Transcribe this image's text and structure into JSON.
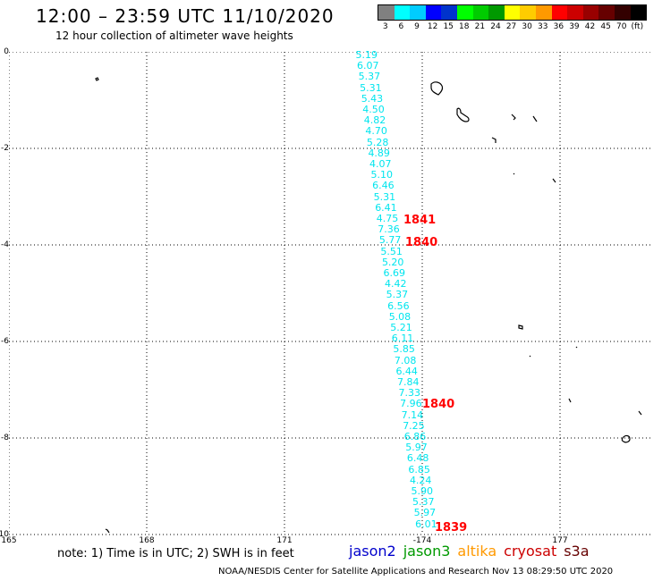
{
  "header": {
    "title": "12:00 – 23:59 UTC 11/10/2020",
    "subtitle": "12 hour collection of altimeter wave heights"
  },
  "scale": {
    "colors": [
      "#808080",
      "#00ffff",
      "#00ccff",
      "#0000ff",
      "#0033cc",
      "#00ff00",
      "#00cc00",
      "#009900",
      "#ffff00",
      "#ffcc00",
      "#ff9900",
      "#ff0000",
      "#cc0000",
      "#990000",
      "#660000",
      "#330000",
      "#000000"
    ],
    "labels": [
      "3",
      "6",
      "9",
      "12",
      "15",
      "18",
      "21",
      "24",
      "27",
      "30",
      "33",
      "36",
      "39",
      "42",
      "45",
      "70",
      "(ft)"
    ]
  },
  "axes": {
    "y_ticks": [
      "0",
      "-2",
      "-4",
      "-6",
      "-8",
      "-10"
    ],
    "x_ticks": [
      "165",
      "168",
      "171",
      "-174",
      "177"
    ]
  },
  "track": {
    "swh": [
      "5.19",
      "6.07",
      "5.37",
      "5.31",
      "5.43",
      "4.50",
      "4.82",
      "4.70",
      "5.28",
      "4.89",
      "4.07",
      "5.10",
      "6.46",
      "5.31",
      "6.41",
      "4.75",
      "7.36",
      "5.77",
      "5.51",
      "5.20",
      "6.69",
      "4.42",
      "5.37",
      "6.56",
      "5.08",
      "5.21",
      "6.11",
      "5.85",
      "7.08",
      "6.44",
      "7.84",
      "7.33",
      "7.96",
      "7.14",
      "7.25",
      "6.86",
      "5.97",
      "6.48",
      "6.85",
      "4.24",
      "5.90",
      "5.37",
      "5.97",
      "6.01"
    ],
    "times": [
      "1841",
      "1840",
      "1840",
      "1839"
    ]
  },
  "note": "note: 1) Time is in UTC; 2) SWH is in feet",
  "satellites": [
    {
      "name": "jason2",
      "color": "#0000cc"
    },
    {
      "name": "jason3",
      "color": "#009900"
    },
    {
      "name": "altika",
      "color": "#ff9900"
    },
    {
      "name": "cryosat",
      "color": "#cc0000"
    },
    {
      "name": "s3a",
      "color": "#660000"
    }
  ],
  "footer": "NOAA/NESDIS Center for Satellite Applications and Research    Nov 13 08:29:50 UTC 2020"
}
